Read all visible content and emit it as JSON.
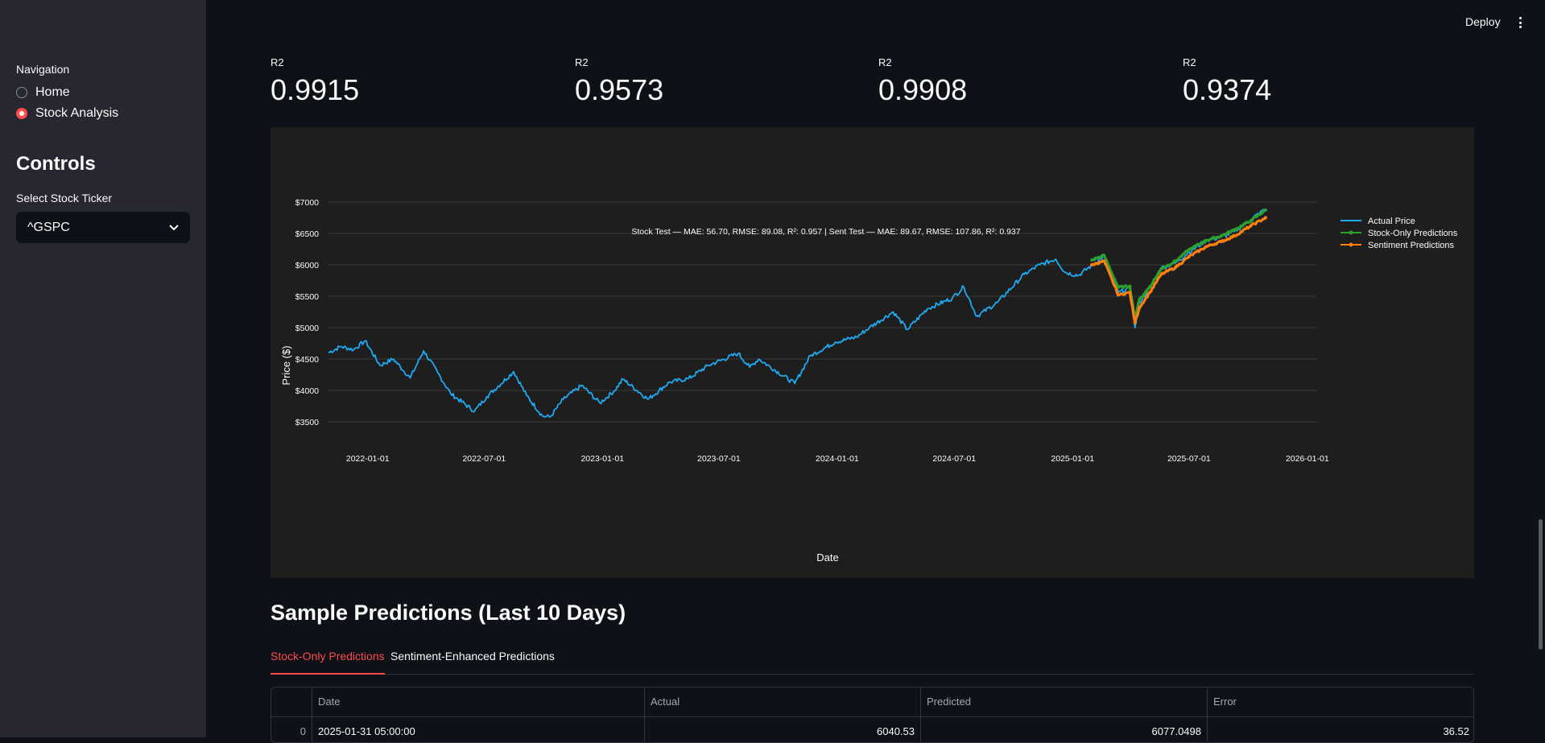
{
  "header": {
    "deploy_label": "Deploy",
    "menu_icon": "vertical-ellipsis-icon"
  },
  "sidebar": {
    "nav_title": "Navigation",
    "nav_items": [
      {
        "label": "Home",
        "selected": false
      },
      {
        "label": "Stock Analysis",
        "selected": true
      }
    ],
    "controls_title": "Controls",
    "ticker_label": "Select Stock Ticker",
    "ticker_value": "^GSPC",
    "ticker_icon": "chevron-down-icon"
  },
  "metrics": [
    {
      "label": "R2",
      "value": "0.9915"
    },
    {
      "label": "R2",
      "value": "0.9573"
    },
    {
      "label": "R2",
      "value": "0.9908"
    },
    {
      "label": "R2",
      "value": "0.9374"
    }
  ],
  "colors": {
    "accent": "#ff4b4b",
    "actual": "#1fa9f0",
    "stock_only": "#2ca02c",
    "sentiment": "#ff7f0e"
  },
  "chart_data": {
    "type": "line",
    "title": "Stock Test — MAE: 56.70, RMSE: 89.08, R²: 0.957 | Sent Test — MAE: 89.67, RMSE: 107.86, R²: 0.937",
    "xlabel": "Date",
    "ylabel": "Price ($)",
    "x_ticks": [
      "2022-01-01",
      "2022-07-01",
      "2023-01-01",
      "2023-07-01",
      "2024-01-01",
      "2024-07-01",
      "2025-01-01",
      "2025-07-01",
      "2026-01-01"
    ],
    "y_ticks": [
      "$3500",
      "$4000",
      "$4500",
      "$5000",
      "$5500",
      "$6000",
      "$6500",
      "$7000"
    ],
    "xlim": [
      "2021-11-01",
      "2026-01-15"
    ],
    "ylim": [
      3450,
      7050
    ],
    "legend_position": "right",
    "series": [
      {
        "name": "Actual Price",
        "color": "#1fa9f0",
        "x": [
          "2021-11-01",
          "2021-11-20",
          "2021-12-10",
          "2021-12-28",
          "2022-01-20",
          "2022-02-10",
          "2022-03-08",
          "2022-03-29",
          "2022-04-20",
          "2022-05-10",
          "2022-06-16",
          "2022-07-05",
          "2022-08-16",
          "2022-09-05",
          "2022-09-30",
          "2022-10-12",
          "2022-11-01",
          "2022-11-30",
          "2022-12-28",
          "2023-01-20",
          "2023-02-02",
          "2023-03-13",
          "2023-04-15",
          "2023-05-15",
          "2023-06-15",
          "2023-07-31",
          "2023-08-18",
          "2023-09-01",
          "2023-10-27",
          "2023-11-20",
          "2023-12-29",
          "2024-01-31",
          "2024-02-20",
          "2024-03-28",
          "2024-04-19",
          "2024-05-20",
          "2024-06-28",
          "2024-07-16",
          "2024-08-05",
          "2024-09-06",
          "2024-10-18",
          "2024-11-11",
          "2024-12-06",
          "2024-12-20",
          "2025-01-10",
          "2025-02-19",
          "2025-03-13",
          "2025-03-31",
          "2025-04-08",
          "2025-04-15",
          "2025-05-01",
          "2025-05-19",
          "2025-06-10",
          "2025-07-01",
          "2025-07-28",
          "2025-08-20",
          "2025-09-10",
          "2025-10-05",
          "2025-10-28"
        ],
        "y": [
          4600,
          4700,
          4650,
          4790,
          4400,
          4500,
          4200,
          4630,
          4280,
          3950,
          3670,
          3900,
          4300,
          3920,
          3590,
          3580,
          3860,
          4080,
          3800,
          4000,
          4180,
          3860,
          4130,
          4190,
          4400,
          4590,
          4370,
          4500,
          4110,
          4550,
          4770,
          4850,
          5000,
          5250,
          4970,
          5300,
          5470,
          5650,
          5180,
          5400,
          5850,
          6000,
          6090,
          5880,
          5830,
          6140,
          5560,
          5620,
          5000,
          5400,
          5630,
          5950,
          6030,
          6200,
          6390,
          6440,
          6530,
          6720,
          6890
        ]
      },
      {
        "name": "Stock-Only Predictions",
        "color": "#2ca02c",
        "x": [
          "2025-01-31",
          "2025-02-19",
          "2025-03-13",
          "2025-03-31",
          "2025-04-08",
          "2025-04-15",
          "2025-05-01",
          "2025-05-19",
          "2025-06-10",
          "2025-07-01",
          "2025-07-28",
          "2025-08-20",
          "2025-09-10",
          "2025-10-05",
          "2025-10-28"
        ],
        "y": [
          6077.05,
          6150,
          5640,
          5660,
          5150,
          5450,
          5650,
          5940,
          6060,
          6240,
          6390,
          6460,
          6560,
          6700,
          6870
        ]
      },
      {
        "name": "Sentiment Predictions",
        "color": "#ff7f0e",
        "x": [
          "2025-01-31",
          "2025-02-19",
          "2025-03-13",
          "2025-03-31",
          "2025-04-08",
          "2025-04-15",
          "2025-05-01",
          "2025-05-19",
          "2025-06-10",
          "2025-07-01",
          "2025-07-28",
          "2025-08-20",
          "2025-09-10",
          "2025-10-05",
          "2025-10-28"
        ],
        "y": [
          6000,
          6060,
          5520,
          5560,
          5080,
          5320,
          5560,
          5850,
          5960,
          6130,
          6290,
          6370,
          6460,
          6620,
          6750
        ]
      }
    ]
  },
  "predictions": {
    "title": "Sample Predictions (Last 10 Days)",
    "tabs": [
      "Stock-Only Predictions",
      "Sentiment-Enhanced Predictions"
    ],
    "active_tab": 0,
    "columns": [
      "",
      "Date",
      "Actual",
      "Predicted",
      "Error"
    ],
    "rows": [
      [
        "0",
        "2025-01-31 05:00:00",
        "6040.53",
        "6077.0498",
        "36.52"
      ]
    ]
  }
}
